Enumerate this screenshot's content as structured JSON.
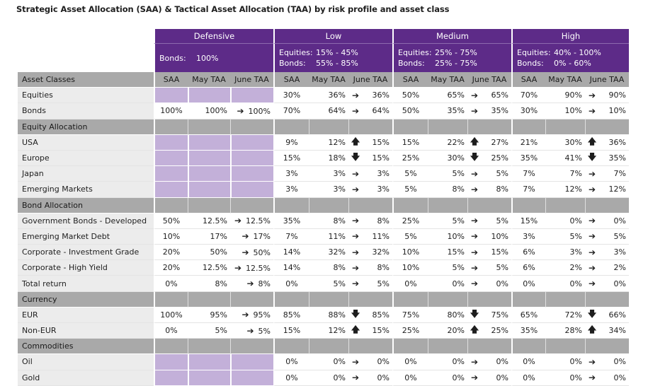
{
  "title": "Strategic Asset Allocation (SAA) & Tactical Asset Allocation (TAA) by risk profile and asset class",
  "profiles": [
    {
      "name": "Defensive",
      "lines": [
        {
          "k": "Bonds:",
          "v": "100%"
        }
      ]
    },
    {
      "name": "Low",
      "lines": [
        {
          "k": "Equities:",
          "v": "15% - 45%"
        },
        {
          "k": "Bonds:",
          "v": "55% - 85%"
        }
      ]
    },
    {
      "name": "Medium",
      "lines": [
        {
          "k": "Equities:",
          "v": "25% - 75%"
        },
        {
          "k": "Bonds:",
          "v": "25% - 75%"
        }
      ]
    },
    {
      "name": "High",
      "lines": [
        {
          "k": "Equities:",
          "v": "40% - 100%"
        },
        {
          "k": "Bonds:",
          "v": "0% - 60%"
        }
      ]
    }
  ],
  "header": {
    "asset_label": "Asset Classes",
    "cols": [
      "SAA",
      "May TAA",
      "June TAA"
    ]
  },
  "arrow_glyphs": {
    "right": "➔",
    "up": "🡅",
    "down": "🡇"
  },
  "rows": [
    {
      "type": "data",
      "label": "Equities",
      "def_shaded": true,
      "g": [
        [
          "30%",
          "36%",
          "right",
          "36%"
        ],
        [
          "50%",
          "65%",
          "right",
          "65%"
        ],
        [
          "70%",
          "90%",
          "right",
          "90%"
        ]
      ]
    },
    {
      "type": "data",
      "label": "Bonds",
      "g": [
        [
          "100%",
          "100%",
          "right",
          "100%"
        ],
        [
          "70%",
          "64%",
          "right",
          "64%"
        ],
        [
          "50%",
          "35%",
          "right",
          "35%"
        ],
        [
          "30%",
          "10%",
          "right",
          "10%"
        ]
      ]
    },
    {
      "type": "section",
      "label": "Equity Allocation"
    },
    {
      "type": "data",
      "label": "USA",
      "def_shaded": true,
      "g": [
        [
          "9%",
          "12%",
          "up",
          "15%"
        ],
        [
          "15%",
          "22%",
          "up",
          "27%"
        ],
        [
          "21%",
          "30%",
          "up",
          "36%"
        ]
      ]
    },
    {
      "type": "data",
      "label": "Europe",
      "def_shaded": true,
      "g": [
        [
          "15%",
          "18%",
          "down",
          "15%"
        ],
        [
          "25%",
          "30%",
          "down",
          "25%"
        ],
        [
          "35%",
          "41%",
          "down",
          "35%"
        ]
      ]
    },
    {
      "type": "data",
      "label": "Japan",
      "def_shaded": true,
      "g": [
        [
          "3%",
          "3%",
          "right",
          "3%"
        ],
        [
          "5%",
          "5%",
          "right",
          "5%"
        ],
        [
          "7%",
          "7%",
          "right",
          "7%"
        ]
      ]
    },
    {
      "type": "data",
      "label": "Emerging Markets",
      "def_shaded": true,
      "g": [
        [
          "3%",
          "3%",
          "right",
          "3%"
        ],
        [
          "5%",
          "8%",
          "right",
          "8%"
        ],
        [
          "7%",
          "12%",
          "right",
          "12%"
        ]
      ]
    },
    {
      "type": "section",
      "label": "Bond Allocation"
    },
    {
      "type": "data",
      "label": "Government Bonds - Developed",
      "g": [
        [
          "50%",
          "12.5%",
          "right",
          "12.5%"
        ],
        [
          "35%",
          "8%",
          "right",
          "8%"
        ],
        [
          "25%",
          "5%",
          "right",
          "5%"
        ],
        [
          "15%",
          "0%",
          "right",
          "0%"
        ]
      ]
    },
    {
      "type": "data",
      "label": "Emerging Market Debt",
      "g": [
        [
          "10%",
          "17%",
          "right",
          "17%"
        ],
        [
          "7%",
          "11%",
          "right",
          "11%"
        ],
        [
          "5%",
          "10%",
          "right",
          "10%"
        ],
        [
          "3%",
          "5%",
          "right",
          "5%"
        ]
      ]
    },
    {
      "type": "data",
      "label": "Corporate - Investment Grade",
      "g": [
        [
          "20%",
          "50%",
          "right",
          "50%"
        ],
        [
          "14%",
          "32%",
          "right",
          "32%"
        ],
        [
          "10%",
          "15%",
          "right",
          "15%"
        ],
        [
          "6%",
          "3%",
          "right",
          "3%"
        ]
      ]
    },
    {
      "type": "data",
      "label": "Corporate - High Yield",
      "g": [
        [
          "20%",
          "12.5%",
          "right",
          "12.5%"
        ],
        [
          "14%",
          "8%",
          "right",
          "8%"
        ],
        [
          "10%",
          "5%",
          "right",
          "5%"
        ],
        [
          "6%",
          "2%",
          "right",
          "2%"
        ]
      ]
    },
    {
      "type": "data",
      "label": "Total return",
      "g": [
        [
          "0%",
          "8%",
          "right",
          "8%"
        ],
        [
          "0%",
          "5%",
          "right",
          "5%"
        ],
        [
          "0%",
          "0%",
          "right",
          "0%"
        ],
        [
          "0%",
          "0%",
          "right",
          "0%"
        ]
      ]
    },
    {
      "type": "section",
      "label": "Currency"
    },
    {
      "type": "data",
      "label": "EUR",
      "g": [
        [
          "100%",
          "95%",
          "right",
          "95%"
        ],
        [
          "85%",
          "88%",
          "down",
          "85%"
        ],
        [
          "75%",
          "80%",
          "down",
          "75%"
        ],
        [
          "65%",
          "72%",
          "down",
          "66%"
        ]
      ]
    },
    {
      "type": "data",
      "label": "Non-EUR",
      "g": [
        [
          "0%",
          "5%",
          "right",
          "5%"
        ],
        [
          "15%",
          "12%",
          "up",
          "15%"
        ],
        [
          "25%",
          "20%",
          "up",
          "25%"
        ],
        [
          "35%",
          "28%",
          "up",
          "34%"
        ]
      ]
    },
    {
      "type": "section",
      "label": "Commodities"
    },
    {
      "type": "data",
      "label": "Oil",
      "def_shaded": true,
      "g": [
        [
          "0%",
          "0%",
          "right",
          "0%"
        ],
        [
          "0%",
          "0%",
          "right",
          "0%"
        ],
        [
          "0%",
          "0%",
          "right",
          "0%"
        ]
      ]
    },
    {
      "type": "data",
      "label": "Gold",
      "def_shaded": true,
      "g": [
        [
          "0%",
          "0%",
          "right",
          "0%"
        ],
        [
          "0%",
          "0%",
          "right",
          "0%"
        ],
        [
          "0%",
          "0%",
          "right",
          "0%"
        ]
      ]
    }
  ]
}
